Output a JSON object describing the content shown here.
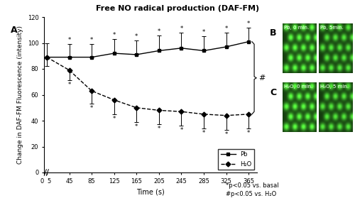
{
  "title": "Free NO radical production (DAF-FM)",
  "panel_label": "A",
  "chart_data": {
    "type": "line",
    "x": [
      5,
      45,
      85,
      125,
      165,
      205,
      245,
      285,
      325,
      365
    ],
    "xlim": [
      0,
      380
    ],
    "xticks": [
      0,
      5,
      45,
      85,
      125,
      165,
      205,
      245,
      285,
      325,
      365
    ],
    "ylim": [
      0,
      120
    ],
    "yticks": [
      0,
      20,
      40,
      60,
      80,
      100,
      120
    ],
    "x_label": "Time (s)",
    "y_label": "Change in DAF-FM Fluorescence (intensity)",
    "legend": "lower right",
    "series": [
      {
        "name": "Pb",
        "color": "#000000",
        "marker": "square",
        "line_style": "solid",
        "values": [
          89,
          89,
          89,
          92,
          91,
          94,
          96,
          94,
          97,
          101
        ],
        "error_plus": [
          11,
          10,
          10,
          11,
          11,
          12,
          12,
          11,
          11,
          11
        ],
        "significance": [
          null,
          "*",
          "*",
          "*",
          "*",
          "*",
          "*",
          "*",
          "*",
          "*"
        ]
      },
      {
        "name": "H₂O",
        "color": "#000000",
        "marker": "diamond",
        "line_style": "dashed",
        "values": [
          89,
          79,
          63,
          56,
          50,
          48,
          47,
          45,
          44,
          45
        ],
        "error_minus": [
          7,
          8,
          10,
          11,
          11,
          11,
          11,
          11,
          11,
          11
        ],
        "significance": [
          null,
          "*",
          "*",
          "*",
          "*",
          "*",
          "*",
          "*",
          "*",
          "*"
        ]
      }
    ],
    "annotations": [
      "#"
    ],
    "footnotes": [
      "*p<0.05 vs. basal",
      "#p<0.05 vs. H₂O"
    ]
  },
  "images": [
    {
      "panel": "B",
      "labels": [
        "Pb, 0 min.",
        "Pb, 5min."
      ]
    },
    {
      "panel": "C",
      "labels": [
        "H₂O, 0 min.",
        "H₂O, 5 min."
      ]
    }
  ]
}
